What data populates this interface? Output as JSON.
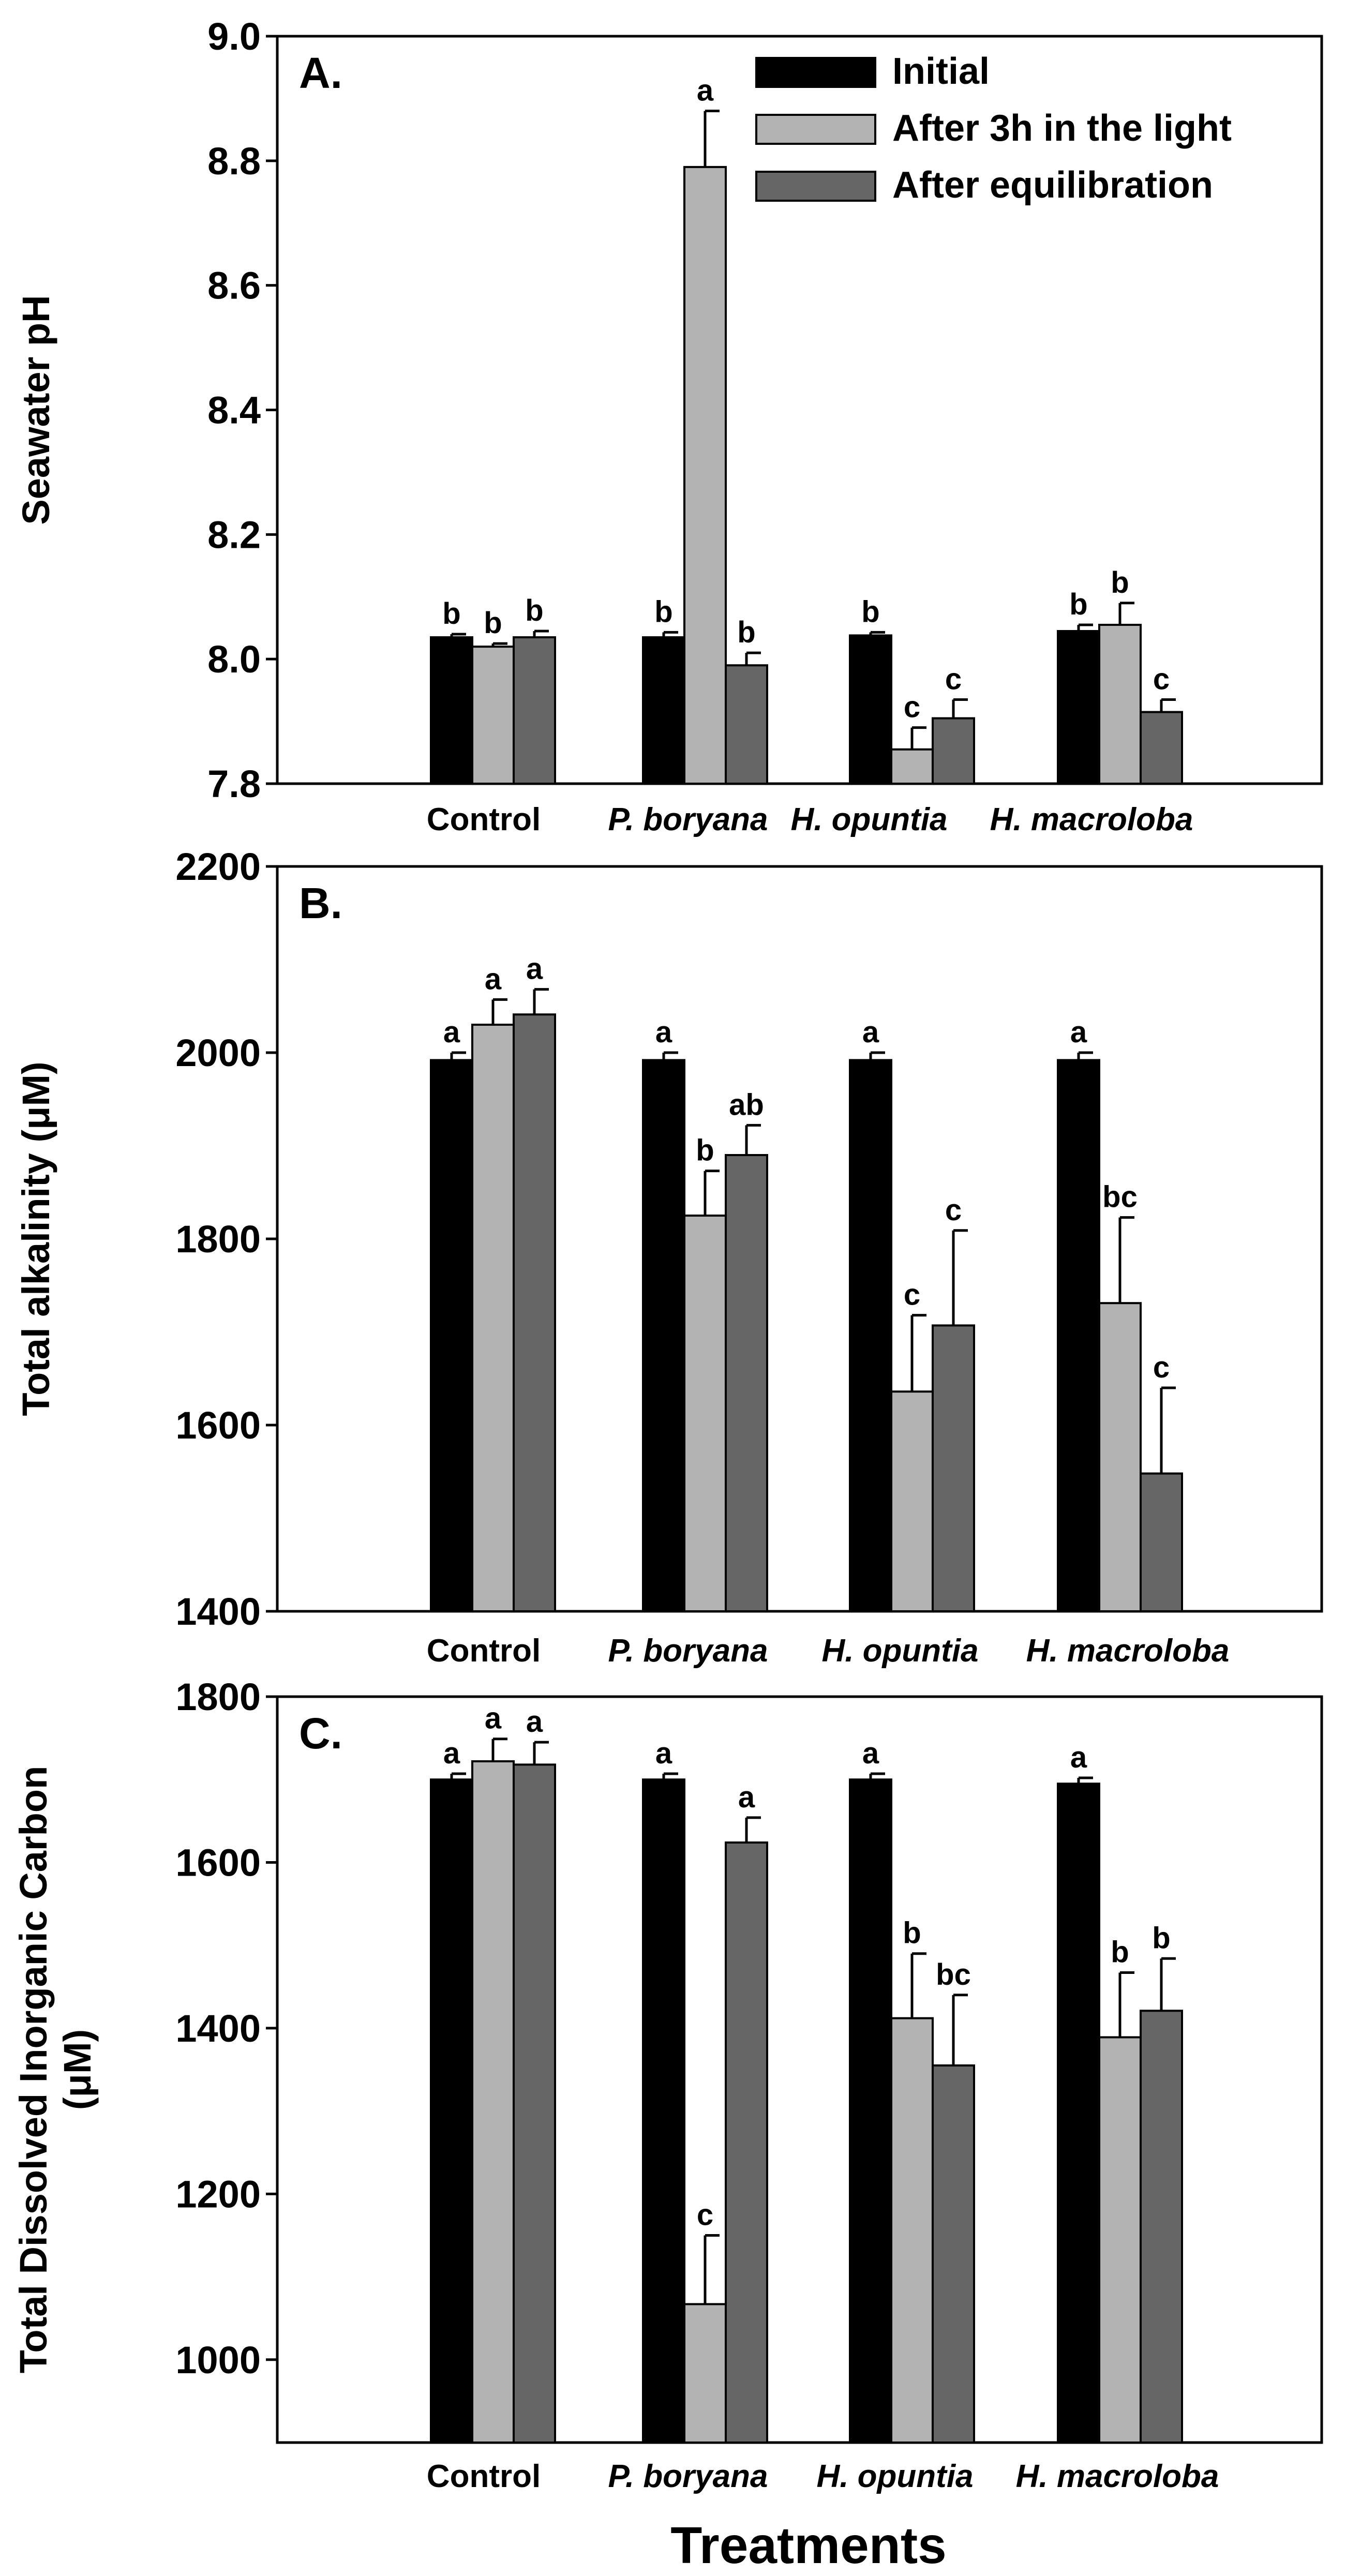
{
  "chart_data": [
    {
      "type": "bar",
      "panel": "A.",
      "ylabel": "Seawater pH",
      "ylim": [
        7.8,
        9.0
      ],
      "yticks": [
        "7.8",
        "8.0",
        "8.2",
        "8.4",
        "8.6",
        "8.8",
        "9.0"
      ],
      "categories": [
        "Control",
        "P. boryana",
        "H. opuntia",
        "H. macroloba"
      ],
      "legend": [
        "Initial",
        "After 3h in the light",
        "After equilibration"
      ],
      "legend_position": "top-right",
      "series": [
        {
          "name": "Initial",
          "values": [
            8.035,
            8.035,
            8.038,
            8.045
          ],
          "errors": [
            0.005,
            0.008,
            0.005,
            0.01
          ],
          "letters": [
            "b",
            "b",
            "b",
            "b"
          ]
        },
        {
          "name": "After 3h in the light",
          "values": [
            8.02,
            8.79,
            7.855,
            8.055
          ],
          "errors": [
            0.005,
            0.09,
            0.035,
            0.035
          ],
          "letters": [
            "b",
            "a",
            "c",
            "b"
          ]
        },
        {
          "name": "After equilibration",
          "values": [
            8.035,
            7.99,
            7.905,
            7.915
          ],
          "errors": [
            0.01,
            0.02,
            0.03,
            0.02
          ],
          "letters": [
            "b",
            "b",
            "c",
            "c"
          ]
        }
      ]
    },
    {
      "type": "bar",
      "panel": "B.",
      "ylabel": "Total alkalinity (μM)",
      "ylim": [
        1400,
        2200
      ],
      "yticks": [
        "1400",
        "1600",
        "1800",
        "2000",
        "2200"
      ],
      "categories": [
        "Control",
        "P. boryana",
        "H. opuntia",
        "H. macroloba"
      ],
      "series": [
        {
          "name": "Initial",
          "values": [
            1992,
            1992,
            1992,
            1992
          ],
          "errors": [
            8,
            8,
            8,
            8
          ],
          "letters": [
            "a",
            "a",
            "a",
            "a"
          ]
        },
        {
          "name": "After 3h in the light",
          "values": [
            2030,
            1825,
            1636,
            1731
          ],
          "errors": [
            27,
            48,
            82,
            92
          ],
          "letters": [
            "a",
            "b",
            "c",
            "bc"
          ]
        },
        {
          "name": "After equilibration",
          "values": [
            2041,
            1890,
            1707,
            1548
          ],
          "errors": [
            27,
            32,
            102,
            92
          ],
          "letters": [
            "a",
            "ab",
            "c",
            "c"
          ]
        }
      ]
    },
    {
      "type": "bar",
      "panel": "C.",
      "ylabel": "Total Dissolved Inorganic Carbon (μM)",
      "ylabel_lines": [
        "Total Dissolved Inorganic Carbon",
        "(μM)"
      ],
      "ylim": [
        900,
        1800
      ],
      "yticks": [
        "1000",
        "1200",
        "1400",
        "1600",
        "1800"
      ],
      "categories": [
        "Control",
        "P. boryana",
        "H. opuntia",
        "H. macroloba"
      ],
      "series": [
        {
          "name": "Initial",
          "values": [
            1700,
            1700,
            1700,
            1695
          ],
          "errors": [
            7,
            7,
            7,
            7
          ],
          "letters": [
            "a",
            "a",
            "a",
            "a"
          ]
        },
        {
          "name": "After 3h in the light",
          "values": [
            1722,
            1067,
            1412,
            1389
          ],
          "errors": [
            27,
            83,
            78,
            78
          ],
          "letters": [
            "a",
            "c",
            "b",
            "b"
          ]
        },
        {
          "name": "After equilibration",
          "values": [
            1718,
            1624,
            1355,
            1421
          ],
          "errors": [
            27,
            30,
            85,
            63
          ],
          "letters": [
            "a",
            "a",
            "bc",
            "b"
          ]
        }
      ]
    }
  ],
  "xlabel": "Treatments",
  "colors": {
    "Initial": "#000000",
    "After 3h in the light": "#b3b3b3",
    "After equilibration": "#666666"
  }
}
